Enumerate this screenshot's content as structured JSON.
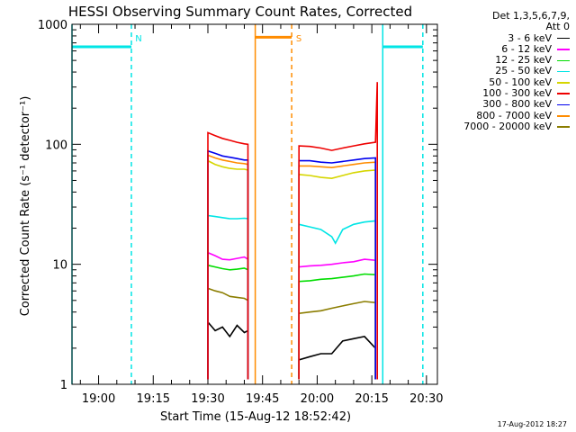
{
  "chart_data": {
    "type": "line",
    "title": "HESSI Observing Summary Count Rates, Corrected",
    "xlabel": "Start Time (15-Aug-12 18:52:42)",
    "ylabel": "Corrected Count Rate (s⁻¹ detector⁻¹)",
    "y_scale": "log",
    "ylim": [
      1,
      1000
    ],
    "xlim": [
      "18:52:42",
      "20:33:00"
    ],
    "x_ticks": [
      "19:00",
      "19:15",
      "19:30",
      "19:45",
      "20:00",
      "20:15",
      "20:30"
    ],
    "y_ticks": [
      "1",
      "10",
      "100",
      "1000"
    ],
    "legend": {
      "header": [
        "Det 1,3,5,6,7,9,",
        "Att 0"
      ],
      "placement": "right"
    },
    "series": [
      {
        "name": "3 - 6 keV",
        "color": "#000000",
        "segments": [
          {
            "t": [
              "19:30",
              "19:32",
              "19:34",
              "19:36",
              "19:38",
              "19:40",
              "19:41"
            ],
            "y": [
              3.3,
              2.8,
              3.0,
              2.5,
              3.1,
              2.7,
              2.8
            ]
          },
          {
            "t": [
              "19:55",
              "19:58",
              "20:01",
              "20:04",
              "20:07",
              "20:10",
              "20:13",
              "20:16"
            ],
            "y": [
              1.6,
              1.7,
              1.8,
              1.8,
              2.3,
              2.4,
              2.5,
              2.0
            ]
          }
        ]
      },
      {
        "name": "6 - 12 keV",
        "color": "#ff00ff",
        "segments": [
          {
            "t": [
              "19:30",
              "19:32",
              "19:34",
              "19:36",
              "19:38",
              "19:40",
              "19:41"
            ],
            "y": [
              12.5,
              11.8,
              11.0,
              10.9,
              11.2,
              11.5,
              11.0
            ]
          },
          {
            "t": [
              "19:55",
              "19:58",
              "20:01",
              "20:04",
              "20:07",
              "20:10",
              "20:13",
              "20:16"
            ],
            "y": [
              9.5,
              9.7,
              9.8,
              10.0,
              10.3,
              10.5,
              11.0,
              10.8
            ]
          }
        ]
      },
      {
        "name": "12 - 25 keV",
        "color": "#00dd00",
        "segments": [
          {
            "t": [
              "19:30",
              "19:32",
              "19:34",
              "19:36",
              "19:38",
              "19:40",
              "19:41"
            ],
            "y": [
              9.8,
              9.5,
              9.2,
              9.0,
              9.1,
              9.3,
              9.0
            ]
          },
          {
            "t": [
              "19:55",
              "19:58",
              "20:01",
              "20:04",
              "20:07",
              "20:10",
              "20:13",
              "20:16"
            ],
            "y": [
              7.2,
              7.3,
              7.5,
              7.6,
              7.8,
              8.0,
              8.3,
              8.2
            ]
          }
        ]
      },
      {
        "name": "25 - 50 keV",
        "color": "#00e5e5",
        "segments": [
          {
            "t": [
              "19:30",
              "19:32",
              "19:34",
              "19:36",
              "19:38",
              "19:40",
              "19:41"
            ],
            "y": [
              25.5,
              25.0,
              24.5,
              24.0,
              24.0,
              24.2,
              24.0
            ]
          },
          {
            "t": [
              "19:55",
              "19:58",
              "20:01",
              "20:04",
              "20:05",
              "20:07",
              "20:10",
              "20:13",
              "20:16"
            ],
            "y": [
              21.5,
              20.5,
              19.5,
              17.0,
              15.0,
              19.5,
              21.5,
              22.5,
              23.0
            ]
          }
        ]
      },
      {
        "name": "50 - 100 keV",
        "color": "#d6d600",
        "segments": [
          {
            "t": [
              "19:30",
              "19:32",
              "19:34",
              "19:36",
              "19:38",
              "19:40",
              "19:41"
            ],
            "y": [
              73,
              68,
              65,
              63,
              62,
              62,
              61
            ]
          },
          {
            "t": [
              "19:55",
              "19:58",
              "20:01",
              "20:04",
              "20:07",
              "20:10",
              "20:13",
              "20:16"
            ],
            "y": [
              56,
              55,
              53,
              52,
              55,
              58,
              60,
              61
            ]
          }
        ]
      },
      {
        "name": "100 - 300 keV",
        "color": "#ee0000",
        "segments": [
          {
            "t": [
              "19:30",
              "19:32",
              "19:34",
              "19:36",
              "19:38",
              "19:40",
              "19:41"
            ],
            "y": [
              125,
              118,
              112,
              108,
              104,
              101,
              100
            ]
          },
          {
            "t": [
              "19:55",
              "19:58",
              "20:01",
              "20:04",
              "20:07",
              "20:10",
              "20:13",
              "20:16",
              "20:16:30"
            ],
            "y": [
              97,
              96,
              93,
              89,
              93,
              97,
              101,
              104,
              330
            ]
          }
        ]
      },
      {
        "name": "300 - 800 keV",
        "color": "#0000ee",
        "segments": [
          {
            "t": [
              "19:30",
              "19:32",
              "19:34",
              "19:36",
              "19:38",
              "19:40",
              "19:41"
            ],
            "y": [
              88,
              84,
              80,
              78,
              76,
              74,
              74
            ]
          },
          {
            "t": [
              "19:55",
              "19:58",
              "20:01",
              "20:04",
              "20:07",
              "20:10",
              "20:13",
              "20:16"
            ],
            "y": [
              73,
              73,
              71,
              70,
              72,
              74,
              76,
              77
            ]
          }
        ]
      },
      {
        "name": "800 - 7000 keV",
        "color": "#ff8c00",
        "segments": [
          {
            "t": [
              "19:30",
              "19:32",
              "19:34",
              "19:36",
              "19:38",
              "19:40",
              "19:41"
            ],
            "y": [
              81,
              77,
              74,
              72,
              70,
              69,
              68
            ]
          },
          {
            "t": [
              "19:55",
              "19:58",
              "20:01",
              "20:04",
              "20:07",
              "20:10",
              "20:13",
              "20:16"
            ],
            "y": [
              66,
              66,
              65,
              64,
              66,
              68,
              70,
              71
            ]
          }
        ]
      },
      {
        "name": "7000 - 20000 keV",
        "color": "#8b7d00",
        "segments": [
          {
            "t": [
              "19:30",
              "19:32",
              "19:34",
              "19:36",
              "19:38",
              "19:40",
              "19:41"
            ],
            "y": [
              6.3,
              6.0,
              5.8,
              5.4,
              5.3,
              5.2,
              5.0
            ]
          },
          {
            "t": [
              "19:55",
              "19:58",
              "20:01",
              "20:04",
              "20:07",
              "20:10",
              "20:13",
              "20:16"
            ],
            "y": [
              3.9,
              4.0,
              4.1,
              4.3,
              4.5,
              4.7,
              4.9,
              4.8
            ]
          }
        ]
      }
    ],
    "annotations": [
      {
        "label": "N",
        "color": "#00e5e5",
        "level": 650,
        "solid_edge": "18:52:42",
        "dashed_edge": "19:09",
        "dashed_end": "20:29",
        "solid_start": "20:18"
      },
      {
        "label": "S",
        "color": "#ff8c00",
        "level": 780,
        "solid_edge": "19:43",
        "dashed_edge": "19:53"
      }
    ]
  },
  "footer": {
    "timestamp": "17-Aug-2012 18:27"
  }
}
